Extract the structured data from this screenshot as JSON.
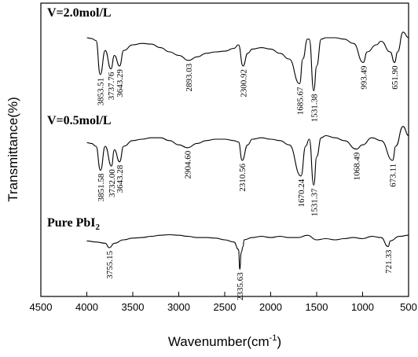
{
  "chart_data": {
    "type": "line",
    "xlabel": "Wavenumber(cm",
    "xlabel_sup": "-1",
    "xlabel_end": ")",
    "ylabel": "Transmittance(%)",
    "xlim": [
      4500,
      500
    ],
    "x_ticks": [
      4500,
      4000,
      3500,
      3000,
      2500,
      2000,
      1500,
      1000,
      500
    ],
    "y_ticks_shown": false,
    "grid": false,
    "legend": "none",
    "series": [
      {
        "name": "V=2.0mol/L",
        "label_html": "V=2.0mol/L",
        "profile": [
          [
            4000,
            20
          ],
          [
            3950,
            21
          ],
          [
            3900,
            24
          ],
          [
            3853.51,
            72
          ],
          [
            3800,
            38
          ],
          [
            3737.76,
            64
          ],
          [
            3700,
            45
          ],
          [
            3643.29,
            60
          ],
          [
            3600,
            38
          ],
          [
            3500,
            30
          ],
          [
            3400,
            28
          ],
          [
            3300,
            29
          ],
          [
            3200,
            34
          ],
          [
            3100,
            40
          ],
          [
            3000,
            45
          ],
          [
            2893.03,
            52
          ],
          [
            2800,
            47
          ],
          [
            2700,
            42
          ],
          [
            2600,
            40
          ],
          [
            2500,
            39
          ],
          [
            2400,
            35
          ],
          [
            2350,
            30
          ],
          [
            2300.92,
            60
          ],
          [
            2250,
            42
          ],
          [
            2200,
            36
          ],
          [
            2100,
            34
          ],
          [
            2000,
            36
          ],
          [
            1900,
            42
          ],
          [
            1800,
            50
          ],
          [
            1685.67,
            85
          ],
          [
            1650,
            50
          ],
          [
            1600,
            22
          ],
          [
            1580,
            22
          ],
          [
            1531.38,
            95
          ],
          [
            1500,
            60
          ],
          [
            1450,
            22
          ],
          [
            1400,
            20
          ],
          [
            1300,
            20
          ],
          [
            1200,
            22
          ],
          [
            1100,
            28
          ],
          [
            993.49,
            55
          ],
          [
            950,
            40
          ],
          [
            850,
            30
          ],
          [
            800,
            25
          ],
          [
            700,
            40
          ],
          [
            651.9,
            55
          ],
          [
            620,
            40
          ],
          [
            560,
            12
          ],
          [
            500,
            20
          ]
        ],
        "peaks": [
          {
            "x": 3853.51,
            "label": "3853.51"
          },
          {
            "x": 3737.76,
            "label": "3737.76"
          },
          {
            "x": 3643.29,
            "label": "3643.29"
          },
          {
            "x": 2893.03,
            "label": "2893.03"
          },
          {
            "x": 2300.92,
            "label": "2300.92"
          },
          {
            "x": 1685.67,
            "label": "1685.67"
          },
          {
            "x": 1531.38,
            "label": "1531.38"
          },
          {
            "x": 993.49,
            "label": "993.49"
          },
          {
            "x": 651.9,
            "label": "651.90"
          }
        ]
      },
      {
        "name": "V=0.5mol/L",
        "label_html": "V=0.5mol/L",
        "profile": [
          [
            4000,
            35
          ],
          [
            3950,
            36
          ],
          [
            3900,
            40
          ],
          [
            3851.58,
            74
          ],
          [
            3800,
            40
          ],
          [
            3732.0,
            68
          ],
          [
            3700,
            45
          ],
          [
            3643.28,
            62
          ],
          [
            3600,
            40
          ],
          [
            3500,
            32
          ],
          [
            3400,
            30
          ],
          [
            3300,
            28
          ],
          [
            3200,
            28
          ],
          [
            3100,
            32
          ],
          [
            3000,
            38
          ],
          [
            2904.6,
            42
          ],
          [
            2800,
            36
          ],
          [
            2700,
            32
          ],
          [
            2600,
            30
          ],
          [
            2500,
            30
          ],
          [
            2400,
            32
          ],
          [
            2350,
            34
          ],
          [
            2310.56,
            60
          ],
          [
            2250,
            38
          ],
          [
            2200,
            30
          ],
          [
            2100,
            28
          ],
          [
            2000,
            30
          ],
          [
            1900,
            32
          ],
          [
            1800,
            38
          ],
          [
            1670.24,
            82
          ],
          [
            1620,
            40
          ],
          [
            1580,
            30
          ],
          [
            1531.37,
            95
          ],
          [
            1500,
            55
          ],
          [
            1450,
            28
          ],
          [
            1400,
            25
          ],
          [
            1300,
            28
          ],
          [
            1200,
            32
          ],
          [
            1068.49,
            44
          ],
          [
            1000,
            38
          ],
          [
            900,
            28
          ],
          [
            800,
            32
          ],
          [
            673.11,
            60
          ],
          [
            640,
            40
          ],
          [
            560,
            12
          ],
          [
            500,
            25
          ]
        ],
        "peaks": [
          {
            "x": 3851.58,
            "label": "3851.58"
          },
          {
            "x": 3732.0,
            "label": "3732.00"
          },
          {
            "x": 3643.28,
            "label": "3643.28"
          },
          {
            "x": 2904.6,
            "label": "2904.60"
          },
          {
            "x": 2310.56,
            "label": "2310.56"
          },
          {
            "x": 1670.24,
            "label": "1670.24"
          },
          {
            "x": 1531.37,
            "label": "1531.37"
          },
          {
            "x": 1068.49,
            "label": "1068.49"
          },
          {
            "x": 673.11,
            "label": "673.11"
          }
        ]
      },
      {
        "name": "Pure PbI2",
        "label_html": "Pure PbI",
        "label_sub": "2",
        "profile": [
          [
            4000,
            20
          ],
          [
            3900,
            22
          ],
          [
            3800,
            24
          ],
          [
            3755.15,
            32
          ],
          [
            3700,
            24
          ],
          [
            3600,
            18
          ],
          [
            3500,
            15
          ],
          [
            3400,
            14
          ],
          [
            3300,
            12
          ],
          [
            3200,
            10
          ],
          [
            3100,
            9
          ],
          [
            3000,
            10
          ],
          [
            2900,
            12
          ],
          [
            2800,
            14
          ],
          [
            2700,
            14
          ],
          [
            2600,
            15
          ],
          [
            2500,
            18
          ],
          [
            2400,
            22
          ],
          [
            2350,
            35
          ],
          [
            2335.63,
            70
          ],
          [
            2320,
            40
          ],
          [
            2300,
            30
          ],
          [
            2290,
            18
          ],
          [
            2200,
            14
          ],
          [
            2100,
            12
          ],
          [
            2000,
            14
          ],
          [
            1900,
            12
          ],
          [
            1800,
            14
          ],
          [
            1700,
            14
          ],
          [
            1600,
            10
          ],
          [
            1500,
            18
          ],
          [
            1400,
            16
          ],
          [
            1300,
            18
          ],
          [
            1200,
            16
          ],
          [
            1100,
            14
          ],
          [
            1000,
            16
          ],
          [
            900,
            12
          ],
          [
            800,
            14
          ],
          [
            721.33,
            30
          ],
          [
            700,
            20
          ],
          [
            600,
            12
          ],
          [
            500,
            10
          ]
        ],
        "peaks": [
          {
            "x": 3755.15,
            "label": "3755.15"
          },
          {
            "x": 2335.63,
            "label": "2335.63"
          },
          {
            "x": 721.33,
            "label": "721.33"
          }
        ]
      }
    ]
  }
}
